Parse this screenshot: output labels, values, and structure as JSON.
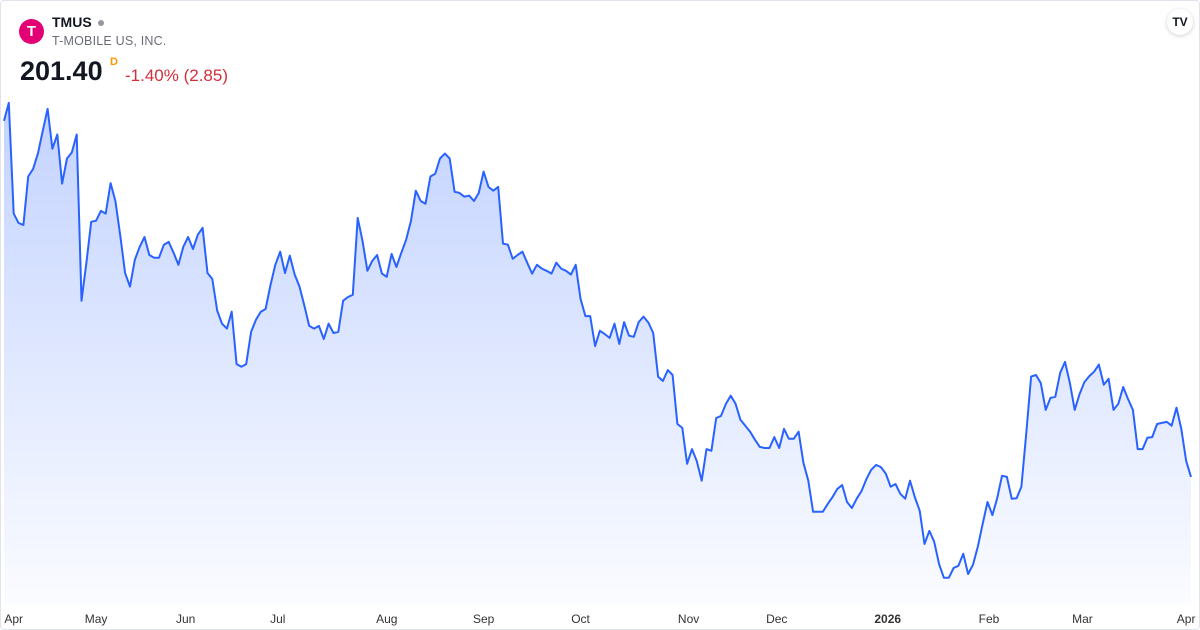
{
  "header": {
    "symbol": "TMUS",
    "company": "T-MOBILE US, INC.",
    "price": "201.40",
    "flag": "D",
    "change": "-1.40% (2.85)"
  },
  "chart_data": {
    "type": "area",
    "color": "#2962ff",
    "values": [
      266.7,
      270.0,
      249.7,
      248.0,
      247.6,
      256.5,
      257.9,
      260.7,
      264.9,
      268.9,
      261.6,
      264.2,
      255.2,
      259.8,
      260.9,
      264.2,
      233.7,
      240.7,
      248.2,
      248.4,
      250.2,
      249.7,
      255.3,
      252.0,
      245.6,
      238.8,
      236.3,
      241.2,
      243.6,
      245.4,
      242.1,
      241.6,
      241.6,
      244.0,
      244.5,
      242.5,
      240.3,
      243.6,
      245.4,
      243.2,
      245.8,
      247.1,
      238.8,
      237.7,
      231.9,
      229.5,
      228.6,
      231.7,
      222.1,
      221.6,
      222.1,
      228.0,
      230.2,
      231.7,
      232.2,
      236.6,
      240.3,
      242.7,
      238.8,
      242.0,
      238.5,
      236.3,
      232.8,
      229.1,
      228.6,
      229.1,
      226.7,
      229.5,
      227.8,
      228.0,
      233.7,
      234.4,
      234.8,
      248.9,
      244.7,
      239.2,
      241.0,
      242.1,
      238.7,
      238.1,
      242.3,
      239.9,
      242.5,
      244.9,
      248.4,
      253.9,
      252.0,
      251.5,
      256.5,
      257.0,
      259.8,
      260.7,
      259.8,
      253.7,
      253.5,
      252.8,
      253.0,
      252.0,
      253.5,
      257.4,
      254.6,
      253.9,
      254.6,
      244.2,
      244.0,
      241.4,
      242.1,
      242.7,
      240.7,
      238.7,
      240.3,
      239.6,
      239.2,
      238.7,
      240.7,
      239.6,
      239.2,
      238.5,
      240.3,
      234.1,
      230.9,
      230.9,
      225.4,
      228.2,
      227.6,
      226.9,
      229.5,
      225.8,
      229.8,
      227.3,
      227.1,
      229.8,
      230.8,
      229.7,
      227.8,
      219.8,
      219.0,
      221.0,
      220.1,
      211.1,
      210.4,
      203.8,
      206.5,
      204.3,
      200.7,
      206.5,
      206.2,
      212.2,
      212.6,
      214.8,
      216.3,
      214.8,
      211.9,
      210.8,
      209.7,
      208.2,
      206.9,
      206.7,
      206.7,
      208.7,
      206.7,
      210.2,
      208.4,
      208.4,
      209.7,
      204.0,
      200.7,
      195.0,
      195.0,
      195.0,
      196.4,
      197.7,
      199.2,
      199.9,
      196.8,
      195.7,
      197.4,
      198.8,
      201.0,
      202.7,
      203.6,
      203.2,
      202.0,
      199.6,
      200.1,
      198.3,
      197.4,
      200.7,
      197.7,
      195.2,
      189.1,
      191.5,
      189.5,
      185.4,
      182.9,
      182.9,
      184.7,
      185.1,
      187.3,
      183.6,
      185.3,
      188.6,
      192.8,
      196.8,
      194.4,
      197.5,
      201.6,
      201.4,
      197.4,
      197.5,
      199.6,
      209.5,
      219.8,
      220.1,
      218.6,
      213.7,
      215.9,
      216.1,
      220.5,
      222.5,
      218.6,
      213.7,
      216.6,
      218.8,
      219.9,
      220.7,
      222.0,
      218.3,
      219.4,
      213.7,
      214.8,
      217.9,
      215.7,
      213.7,
      206.5,
      206.5,
      208.6,
      208.7,
      211.1,
      211.3,
      211.5,
      210.8,
      214.1,
      210.2,
      204.3,
      201.4
    ],
    "ylim": [
      178,
      272
    ],
    "xlim": [
      0,
      245
    ],
    "xticks": [
      {
        "value": 2,
        "label": "Apr"
      },
      {
        "value": 19,
        "label": "May"
      },
      {
        "value": 37.5,
        "label": "Jun"
      },
      {
        "value": 56.5,
        "label": "Jul"
      },
      {
        "value": 79,
        "label": "Aug"
      },
      {
        "value": 99,
        "label": "Sep"
      },
      {
        "value": 119,
        "label": "Oct"
      },
      {
        "value": 141.3,
        "label": "Nov"
      },
      {
        "value": 159.5,
        "label": "Dec"
      },
      {
        "value": 182.4,
        "label": "2026",
        "bold": true
      },
      {
        "value": 203.3,
        "label": "Feb"
      },
      {
        "value": 222.6,
        "label": "Mar"
      },
      {
        "value": 244,
        "label": "Apr"
      }
    ]
  }
}
